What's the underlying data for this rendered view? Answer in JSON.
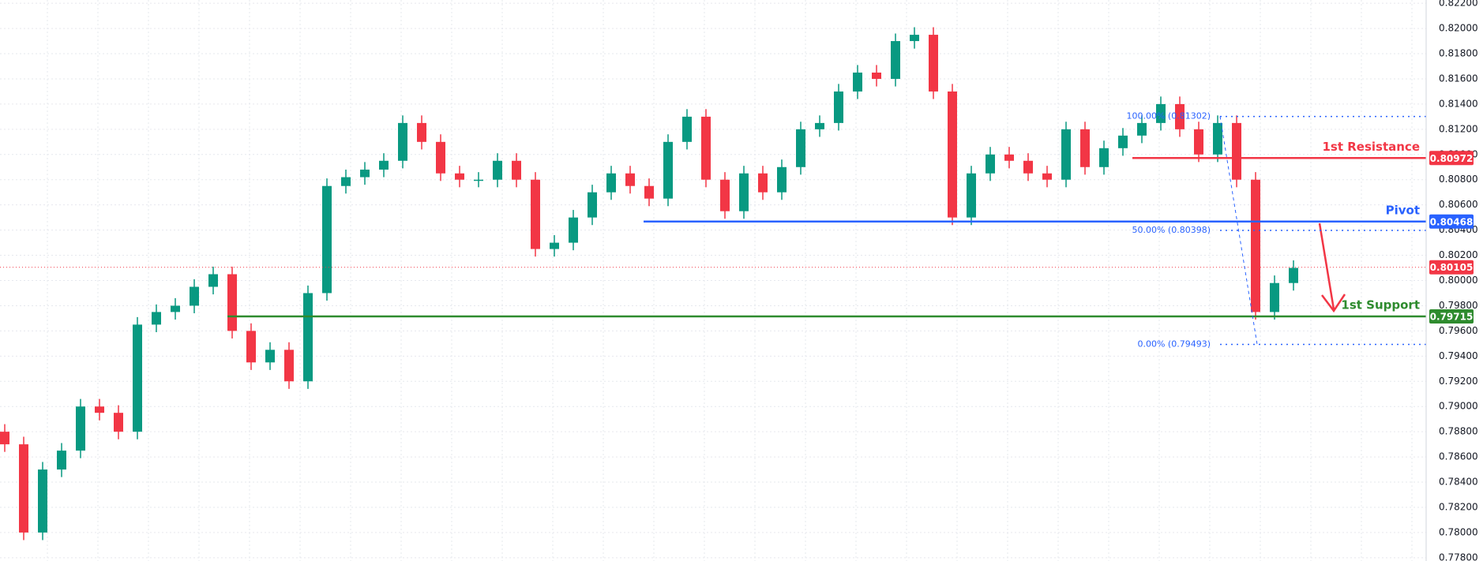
{
  "chart_data": {
    "type": "candlestick",
    "up_color": "#089981",
    "down_color": "#f23645",
    "ylim": [
      0.77774,
      0.82226
    ],
    "yticks": [
      {
        "value": 0.778,
        "label": "0.77800"
      },
      {
        "value": 0.78,
        "label": "0.78000"
      },
      {
        "value": 0.782,
        "label": "0.78200"
      },
      {
        "value": 0.784,
        "label": "0.78400"
      },
      {
        "value": 0.786,
        "label": "0.78600"
      },
      {
        "value": 0.788,
        "label": "0.78800"
      },
      {
        "value": 0.79,
        "label": "0.79000"
      },
      {
        "value": 0.792,
        "label": "0.79200"
      },
      {
        "value": 0.794,
        "label": "0.79400"
      },
      {
        "value": 0.796,
        "label": "0.79600"
      },
      {
        "value": 0.798,
        "label": "0.79800"
      },
      {
        "value": 0.8,
        "label": "0.80000"
      },
      {
        "value": 0.802,
        "label": "0.80200"
      },
      {
        "value": 0.804,
        "label": "0.80400"
      },
      {
        "value": 0.806,
        "label": "0.80600"
      },
      {
        "value": 0.808,
        "label": "0.80800"
      },
      {
        "value": 0.81,
        "label": "0.81000"
      },
      {
        "value": 0.812,
        "label": "0.81200"
      },
      {
        "value": 0.814,
        "label": "0.81400"
      },
      {
        "value": 0.816,
        "label": "0.81600"
      },
      {
        "value": 0.818,
        "label": "0.81800"
      },
      {
        "value": 0.82,
        "label": "0.82000"
      },
      {
        "value": 0.822,
        "label": "0.82200"
      }
    ],
    "grid": true,
    "open": [
      0.788,
      0.787,
      0.78,
      0.785,
      0.7865,
      0.79,
      0.7895,
      0.788,
      0.7965,
      0.7975,
      0.798,
      0.7995,
      0.8005,
      0.796,
      0.7935,
      0.7945,
      0.792,
      0.799,
      0.8075,
      0.8082,
      0.8088,
      0.8095,
      0.8125,
      0.811,
      0.8085,
      0.808,
      0.808,
      0.8095,
      0.808,
      0.8025,
      0.803,
      0.805,
      0.807,
      0.8085,
      0.8075,
      0.8065,
      0.811,
      0.813,
      0.808,
      0.8055,
      0.8085,
      0.807,
      0.809,
      0.812,
      0.8125,
      0.815,
      0.8165,
      0.816,
      0.819,
      0.8195,
      0.815,
      0.805,
      0.8085,
      0.81,
      0.8095,
      0.8085,
      0.808,
      0.812,
      0.809,
      0.8105,
      0.8115,
      0.8125,
      0.814,
      0.812,
      0.81,
      0.8125,
      0.808,
      0.7975,
      0.7998
    ],
    "high": [
      0.7886,
      0.7876,
      0.7856,
      0.7871,
      0.7906,
      0.7906,
      0.7901,
      0.7971,
      0.7981,
      0.7986,
      0.8001,
      0.8011,
      0.8011,
      0.7966,
      0.7951,
      0.7951,
      0.7996,
      0.8081,
      0.8088,
      0.8094,
      0.8101,
      0.8131,
      0.8131,
      0.8116,
      0.8091,
      0.8086,
      0.8101,
      0.8101,
      0.8086,
      0.8036,
      0.8056,
      0.8076,
      0.8091,
      0.8091,
      0.8081,
      0.8116,
      0.8136,
      0.8136,
      0.8086,
      0.8091,
      0.8091,
      0.8096,
      0.8126,
      0.8131,
      0.8156,
      0.8171,
      0.8171,
      0.8196,
      0.8201,
      0.8201,
      0.8156,
      0.8091,
      0.8106,
      0.8106,
      0.8101,
      0.8091,
      0.8126,
      0.8126,
      0.8111,
      0.8121,
      0.8131,
      0.8146,
      0.8146,
      0.8126,
      0.8131,
      0.8131,
      0.8086,
      0.8004,
      0.8016
    ],
    "low": [
      0.7864,
      0.7794,
      0.7794,
      0.7844,
      0.7859,
      0.7889,
      0.7874,
      0.7874,
      0.7959,
      0.7969,
      0.7974,
      0.7989,
      0.7954,
      0.7929,
      0.7929,
      0.7914,
      0.7914,
      0.7984,
      0.8069,
      0.8076,
      0.8082,
      0.8089,
      0.8104,
      0.8079,
      0.8074,
      0.8074,
      0.8074,
      0.8074,
      0.8019,
      0.8019,
      0.8024,
      0.8044,
      0.8064,
      0.8069,
      0.8059,
      0.8059,
      0.8104,
      0.8074,
      0.8049,
      0.8049,
      0.8064,
      0.8064,
      0.8084,
      0.8114,
      0.8119,
      0.8144,
      0.8154,
      0.8154,
      0.8184,
      0.8144,
      0.8044,
      0.8044,
      0.8079,
      0.8089,
      0.8079,
      0.8074,
      0.8074,
      0.8084,
      0.8084,
      0.8099,
      0.8109,
      0.8119,
      0.8114,
      0.8094,
      0.8094,
      0.8074,
      0.7969,
      0.7969,
      0.7992
    ],
    "close": [
      0.787,
      0.78,
      0.785,
      0.7865,
      0.79,
      0.7895,
      0.788,
      0.7965,
      0.7975,
      0.798,
      0.7995,
      0.8005,
      0.796,
      0.7935,
      0.7945,
      0.792,
      0.799,
      0.8075,
      0.8082,
      0.8088,
      0.8095,
      0.8125,
      0.811,
      0.8085,
      0.808,
      0.808,
      0.8095,
      0.808,
      0.8025,
      0.803,
      0.805,
      0.807,
      0.8085,
      0.8075,
      0.8065,
      0.811,
      0.813,
      0.808,
      0.8055,
      0.8085,
      0.807,
      0.809,
      0.812,
      0.8125,
      0.815,
      0.8165,
      0.816,
      0.819,
      0.8195,
      0.815,
      0.805,
      0.8085,
      0.81,
      0.8095,
      0.8085,
      0.808,
      0.812,
      0.809,
      0.8105,
      0.8115,
      0.8125,
      0.814,
      0.812,
      0.81,
      0.8125,
      0.808,
      0.7975,
      0.7998,
      0.801
    ],
    "last_price": 0.80105,
    "last_price_color": "#f23645",
    "levels": [
      {
        "name": "1st Resistance",
        "value": 0.80972,
        "color": "#f23645"
      },
      {
        "name": "Pivot",
        "value": 0.80468,
        "color": "#2962ff"
      },
      {
        "name": "1st Support",
        "value": 0.79715,
        "color": "#2e8b2e"
      }
    ],
    "fib_levels": [
      {
        "value": 0.81302,
        "label": "100.00% (0.81302)"
      },
      {
        "value": 0.80398,
        "label": "50.00% (0.80398)"
      },
      {
        "value": 0.79493,
        "label": "0.00% (0.79493)"
      }
    ],
    "fib_color": "#2962ff"
  }
}
